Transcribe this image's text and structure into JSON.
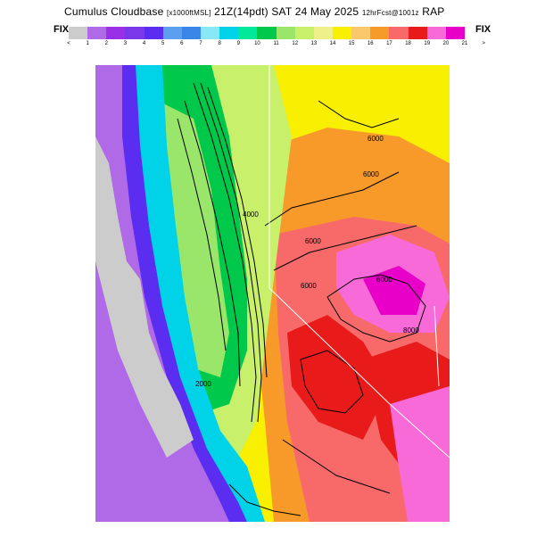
{
  "header": {
    "title_main": "Cumulus Cloudbase",
    "title_units": "[x1000ftMSL]",
    "title_valid": "21Z(14pdt) SAT 24 May 2025",
    "title_fcst": "12hrFcst@1001z",
    "title_model": "RAP"
  },
  "colorbar": {
    "left_label": "FIX",
    "right_label": "FIX",
    "tick_labels": [
      "<",
      "1",
      "2",
      "3",
      "4",
      "5",
      "6",
      "7",
      "8",
      "9",
      "10",
      "11",
      "12",
      "13",
      "14",
      "15",
      "16",
      "17",
      "18",
      "19",
      "20",
      "21",
      ">"
    ],
    "colors": [
      "#cccccc",
      "#b06ae8",
      "#9a2fe8",
      "#7a38e8",
      "#5a2df0",
      "#5aa0ee",
      "#3a86e8",
      "#88e8f8",
      "#00d2e8",
      "#00e89a",
      "#00c84a",
      "#99e66a",
      "#c8f06a",
      "#f0f08a",
      "#f8f000",
      "#f8c86a",
      "#f89a2a",
      "#f86a6a",
      "#e81a1a",
      "#f86ad8",
      "#e800c8"
    ]
  },
  "map": {
    "contour_labels": [
      "6000",
      "6000",
      "6000",
      "6000",
      "2000",
      "4000",
      "6000",
      "8000"
    ],
    "land_colors": {
      "ocean": "#cccccc",
      "coast": "#b06ae8"
    }
  }
}
